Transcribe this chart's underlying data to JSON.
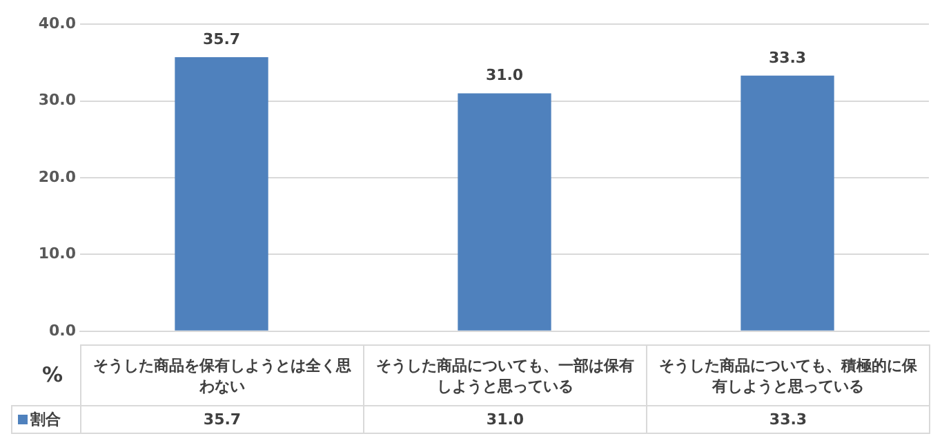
{
  "chart_data": {
    "type": "bar",
    "ylabel": "%",
    "categories": [
      "そうした商品を保有しようとは全く思わない",
      "そうした商品についても、一部は保有しようと思っている",
      "そうした商品についても、積極的に保有しようと思っている"
    ],
    "series": [
      {
        "name": "割合",
        "color": "#4f81bd",
        "values": [
          35.7,
          31.0,
          33.3
        ],
        "value_labels": [
          "35.7",
          "31.0",
          "33.3"
        ]
      }
    ],
    "ylim": [
      0,
      40
    ],
    "yticks": [
      {
        "value": 0,
        "label": "0.0"
      },
      {
        "value": 10,
        "label": "10.0"
      },
      {
        "value": 20,
        "label": "20.0"
      },
      {
        "value": 30,
        "label": "30.0"
      },
      {
        "value": 40,
        "label": "40.0"
      }
    ],
    "grid": "y",
    "legend": "bottom left"
  }
}
